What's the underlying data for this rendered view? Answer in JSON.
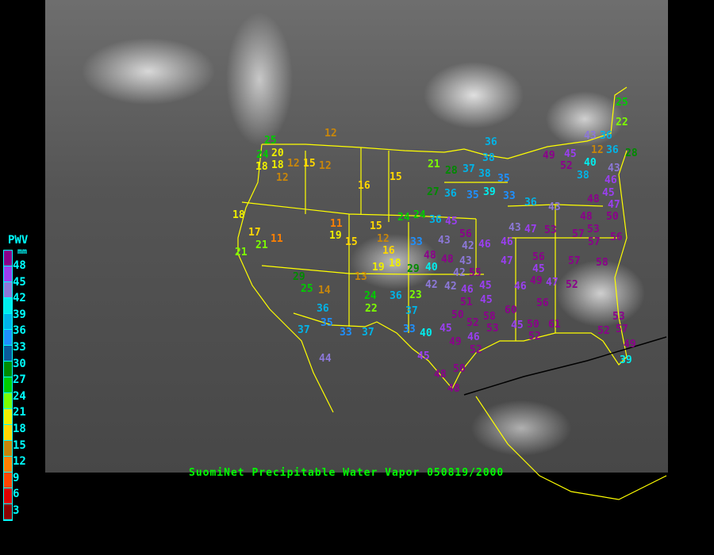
{
  "title": "SuomiNet Precipitable Water Vapor 050819/2000",
  "legend": {
    "title": "PWV",
    "unit": "mm",
    "ticks": [
      "48",
      "45",
      "42",
      "39",
      "36",
      "33",
      "30",
      "27",
      "24",
      "21",
      "18",
      "15",
      "12",
      "9",
      "6",
      "3"
    ],
    "colors": [
      "#8b008b",
      "#9a3ff0",
      "#8c78d8",
      "#00eeee",
      "#00b4e8",
      "#1e90ff",
      "#0a5a9a",
      "#008b00",
      "#00cc00",
      "#7cff00",
      "#eeee00",
      "#ffd700",
      "#c8860a",
      "#ff8000",
      "#ff4500",
      "#dd0000",
      "#8b0000"
    ]
  },
  "stations": [
    25,
    20,
    24,
    18,
    18,
    12,
    12,
    15,
    12,
    12,
    16,
    15,
    21,
    28,
    37,
    27,
    36,
    18,
    17,
    21,
    11,
    21,
    11,
    19,
    15,
    15,
    12,
    16,
    18,
    19,
    29,
    24,
    24,
    36,
    45,
    13,
    29,
    25,
    14,
    36,
    35,
    33,
    37,
    37,
    44,
    24,
    22,
    36,
    23,
    37,
    33,
    40,
    45,
    33,
    43,
    40,
    48,
    48,
    43,
    42,
    42,
    42,
    46,
    45,
    51,
    45,
    45,
    48,
    48,
    50,
    36,
    38,
    38,
    39,
    35,
    35,
    33,
    36,
    43,
    47,
    53,
    43,
    49,
    52,
    45,
    40,
    38,
    43,
    36,
    36,
    28,
    22,
    25,
    12,
    43,
    46,
    45,
    48,
    47,
    48,
    53,
    50,
    56,
    57,
    57,
    46,
    46,
    42,
    56,
    47,
    56,
    45,
    49,
    46,
    47,
    57,
    58,
    52,
    56,
    60,
    58,
    53,
    50,
    52,
    46,
    49,
    52,
    45,
    50,
    61,
    52,
    52,
    53,
    57,
    49,
    39,
    55,
    52,
    49
  ]
}
